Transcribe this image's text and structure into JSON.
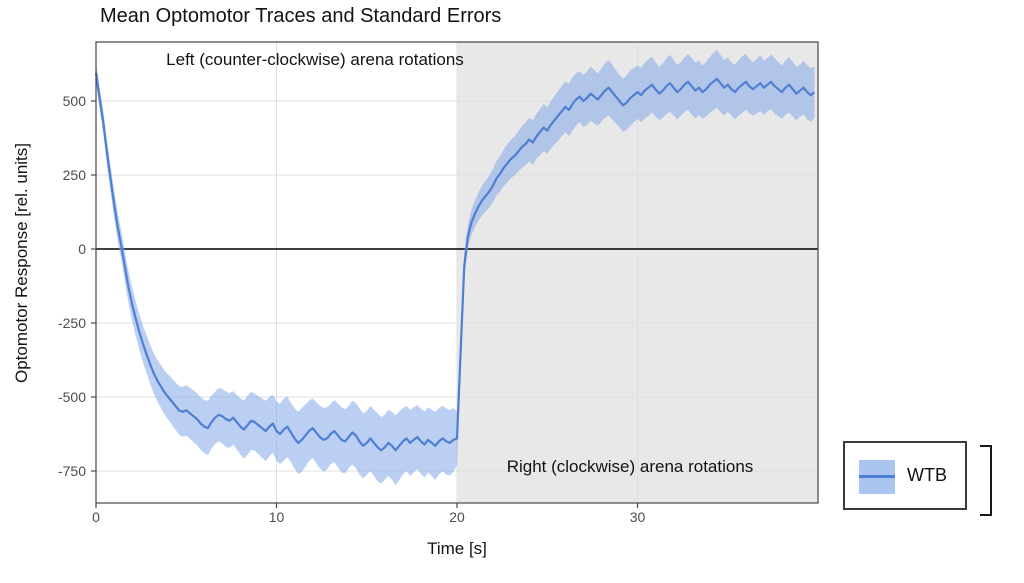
{
  "title": "Mean Optomotor Traces and Standard Errors",
  "axes": {
    "x_title": "Time [s]",
    "y_title": "Optomotor Response [rel. units]",
    "x_ticks": [
      0,
      10,
      20,
      30
    ],
    "y_ticks": [
      500,
      250,
      0,
      -250,
      -500,
      -750
    ],
    "x_range": [
      0,
      40
    ],
    "y_range": [
      -860,
      705
    ],
    "grid": "major-only",
    "zero_line": true
  },
  "annotations": {
    "left": "Left (counter-clockwise) arena rotations",
    "right": "Right (clockwise) arena rotations"
  },
  "legend": {
    "label": "WTB",
    "position": "right-outside-bottom"
  },
  "colors": {
    "line": "#4f7fd3",
    "ribbon": "rgba(132,167,232,0.55)",
    "ribbon_solid": "#aac5ef",
    "shaded_region": "#e8e8e8",
    "grid": "#e0e0e0",
    "panel_border": "#454545",
    "tick_text": "#4d4d4d",
    "text": "#131313",
    "zero_line": "#000000"
  },
  "chart_data": {
    "type": "line",
    "title": "Mean Optomotor Traces and Standard Errors",
    "xlabel": "Time [s]",
    "ylabel": "Optomotor Response [rel. units]",
    "xlim": [
      0,
      40
    ],
    "ylim": [
      -860,
      705
    ],
    "x_start": 0,
    "x_step": 0.2,
    "regions": [
      {
        "label": "Left (counter-clockwise) arena rotations",
        "x": [
          0,
          20
        ],
        "shaded": false
      },
      {
        "label": "Right (clockwise) arena rotations",
        "x": [
          20,
          40
        ],
        "shaded": true
      }
    ],
    "series": [
      {
        "name": "WTB",
        "mean": [
          595,
          510,
          430,
          330,
          240,
          155,
          75,
          10,
          -60,
          -130,
          -185,
          -235,
          -280,
          -320,
          -355,
          -390,
          -420,
          -445,
          -465,
          -485,
          -500,
          -515,
          -530,
          -545,
          -550,
          -545,
          -555,
          -565,
          -575,
          -590,
          -600,
          -605,
          -585,
          -570,
          -560,
          -565,
          -575,
          -580,
          -570,
          -585,
          -600,
          -610,
          -595,
          -580,
          -585,
          -595,
          -605,
          -615,
          -600,
          -590,
          -615,
          -625,
          -610,
          -600,
          -620,
          -640,
          -655,
          -645,
          -630,
          -615,
          -605,
          -620,
          -635,
          -645,
          -640,
          -625,
          -615,
          -630,
          -645,
          -650,
          -635,
          -620,
          -630,
          -650,
          -665,
          -655,
          -640,
          -655,
          -670,
          -680,
          -670,
          -655,
          -665,
          -680,
          -665,
          -650,
          -640,
          -655,
          -645,
          -635,
          -650,
          -660,
          -645,
          -655,
          -665,
          -650,
          -640,
          -650,
          -655,
          -645,
          -640,
          -350,
          -60,
          40,
          90,
          120,
          145,
          165,
          180,
          195,
          215,
          240,
          255,
          275,
          290,
          305,
          315,
          330,
          345,
          355,
          370,
          360,
          380,
          395,
          410,
          400,
          420,
          435,
          450,
          465,
          480,
          470,
          490,
          505,
          515,
          500,
          510,
          525,
          515,
          505,
          520,
          535,
          545,
          530,
          515,
          500,
          485,
          495,
          510,
          520,
          530,
          520,
          535,
          545,
          555,
          540,
          525,
          535,
          550,
          560,
          545,
          530,
          540,
          555,
          565,
          550,
          535,
          545,
          530,
          540,
          555,
          565,
          575,
          560,
          545,
          555,
          540,
          530,
          545,
          555,
          565,
          550,
          540,
          550,
          560,
          545,
          555,
          565,
          550,
          540,
          530,
          545,
          555,
          540,
          525,
          535,
          545,
          530,
          520,
          530
        ],
        "se": [
          35,
          38,
          40,
          42,
          45,
          47,
          48,
          50,
          52,
          54,
          56,
          58,
          60,
          62,
          64,
          66,
          68,
          70,
          72,
          74,
          76,
          78,
          80,
          82,
          84,
          85,
          86,
          87,
          88,
          89,
          90,
          92,
          90,
          88,
          90,
          92,
          94,
          92,
          90,
          92,
          95,
          98,
          100,
          98,
          96,
          98,
          100,
          102,
          100,
          98,
          100,
          102,
          105,
          103,
          100,
          102,
          105,
          108,
          105,
          102,
          100,
          103,
          106,
          108,
          105,
          102,
          105,
          108,
          110,
          108,
          105,
          108,
          110,
          112,
          110,
          108,
          110,
          112,
          115,
          112,
          110,
          112,
          115,
          118,
          115,
          112,
          110,
          112,
          110,
          108,
          110,
          112,
          110,
          112,
          115,
          112,
          110,
          112,
          110,
          108,
          90,
          60,
          45,
          40,
          42,
          45,
          48,
          50,
          52,
          54,
          56,
          58,
          60,
          62,
          64,
          65,
          66,
          68,
          70,
          72,
          74,
          75,
          76,
          78,
          80,
          78,
          80,
          82,
          84,
          85,
          86,
          88,
          90,
          88,
          86,
          88,
          90,
          92,
          90,
          88,
          90,
          92,
          94,
          92,
          90,
          88,
          90,
          92,
          94,
          92,
          90,
          92,
          94,
          96,
          94,
          92,
          90,
          92,
          94,
          96,
          94,
          92,
          90,
          92,
          94,
          96,
          94,
          92,
          90,
          92,
          94,
          96,
          98,
          96,
          94,
          92,
          90,
          92,
          94,
          96,
          94,
          92,
          90,
          92,
          94,
          92,
          90,
          92,
          94,
          92,
          90,
          92,
          94,
          92,
          90,
          88,
          90,
          92,
          90,
          88
        ]
      }
    ]
  }
}
